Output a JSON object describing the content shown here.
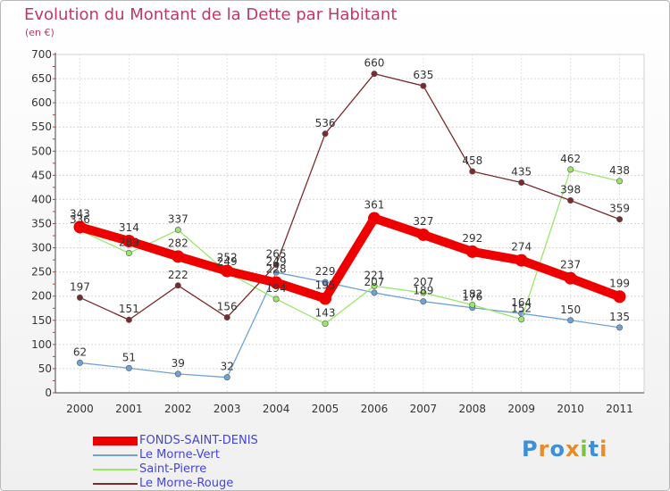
{
  "title": "Evolution du Montant de la Dette par Habitant",
  "subtitle": "(en €)",
  "logo": {
    "letters": [
      "P",
      "r",
      "o",
      "x",
      "i",
      "t",
      "i"
    ],
    "colors": [
      "#3f8fd8",
      "#e88b2a",
      "#3f8fd8",
      "#e88b2a",
      "#7cc243",
      "#3f8fd8",
      "#e88b2a"
    ]
  },
  "chart_data": {
    "type": "line",
    "x": [
      "2000",
      "2001",
      "2002",
      "2003",
      "2004",
      "2005",
      "2006",
      "2007",
      "2008",
      "2009",
      "2010",
      "2011"
    ],
    "ylim": [
      0,
      700
    ],
    "yticks": [
      "0",
      "50",
      "100",
      "150",
      "200",
      "250",
      "300",
      "350",
      "400",
      "450",
      "500",
      "550",
      "600",
      "650",
      "700"
    ],
    "grid": true,
    "legend_position": "bottom-left",
    "series": [
      {
        "name": "FONDS-SAINT-DENIS",
        "color": "#ee0000",
        "values": [
          343,
          314,
          282,
          252,
          228,
          195,
          361,
          327,
          292,
          274,
          237,
          199
        ]
      },
      {
        "name": "Le Morne-Vert",
        "color": "#6fa3d6",
        "values": [
          62,
          51,
          39,
          32,
          249,
          229,
          207,
          189,
          176,
          164,
          150,
          135
        ]
      },
      {
        "name": "Saint-Pierre",
        "color": "#99e66b",
        "values": [
          336,
          289,
          337,
          249,
          194,
          143,
          221,
          207,
          182,
          152,
          462,
          438
        ]
      },
      {
        "name": "Le Morne-Rouge",
        "color": "#7a2b2b",
        "values": [
          197,
          151,
          222,
          156,
          265,
          536,
          660,
          635,
          458,
          435,
          398,
          359
        ]
      }
    ]
  }
}
